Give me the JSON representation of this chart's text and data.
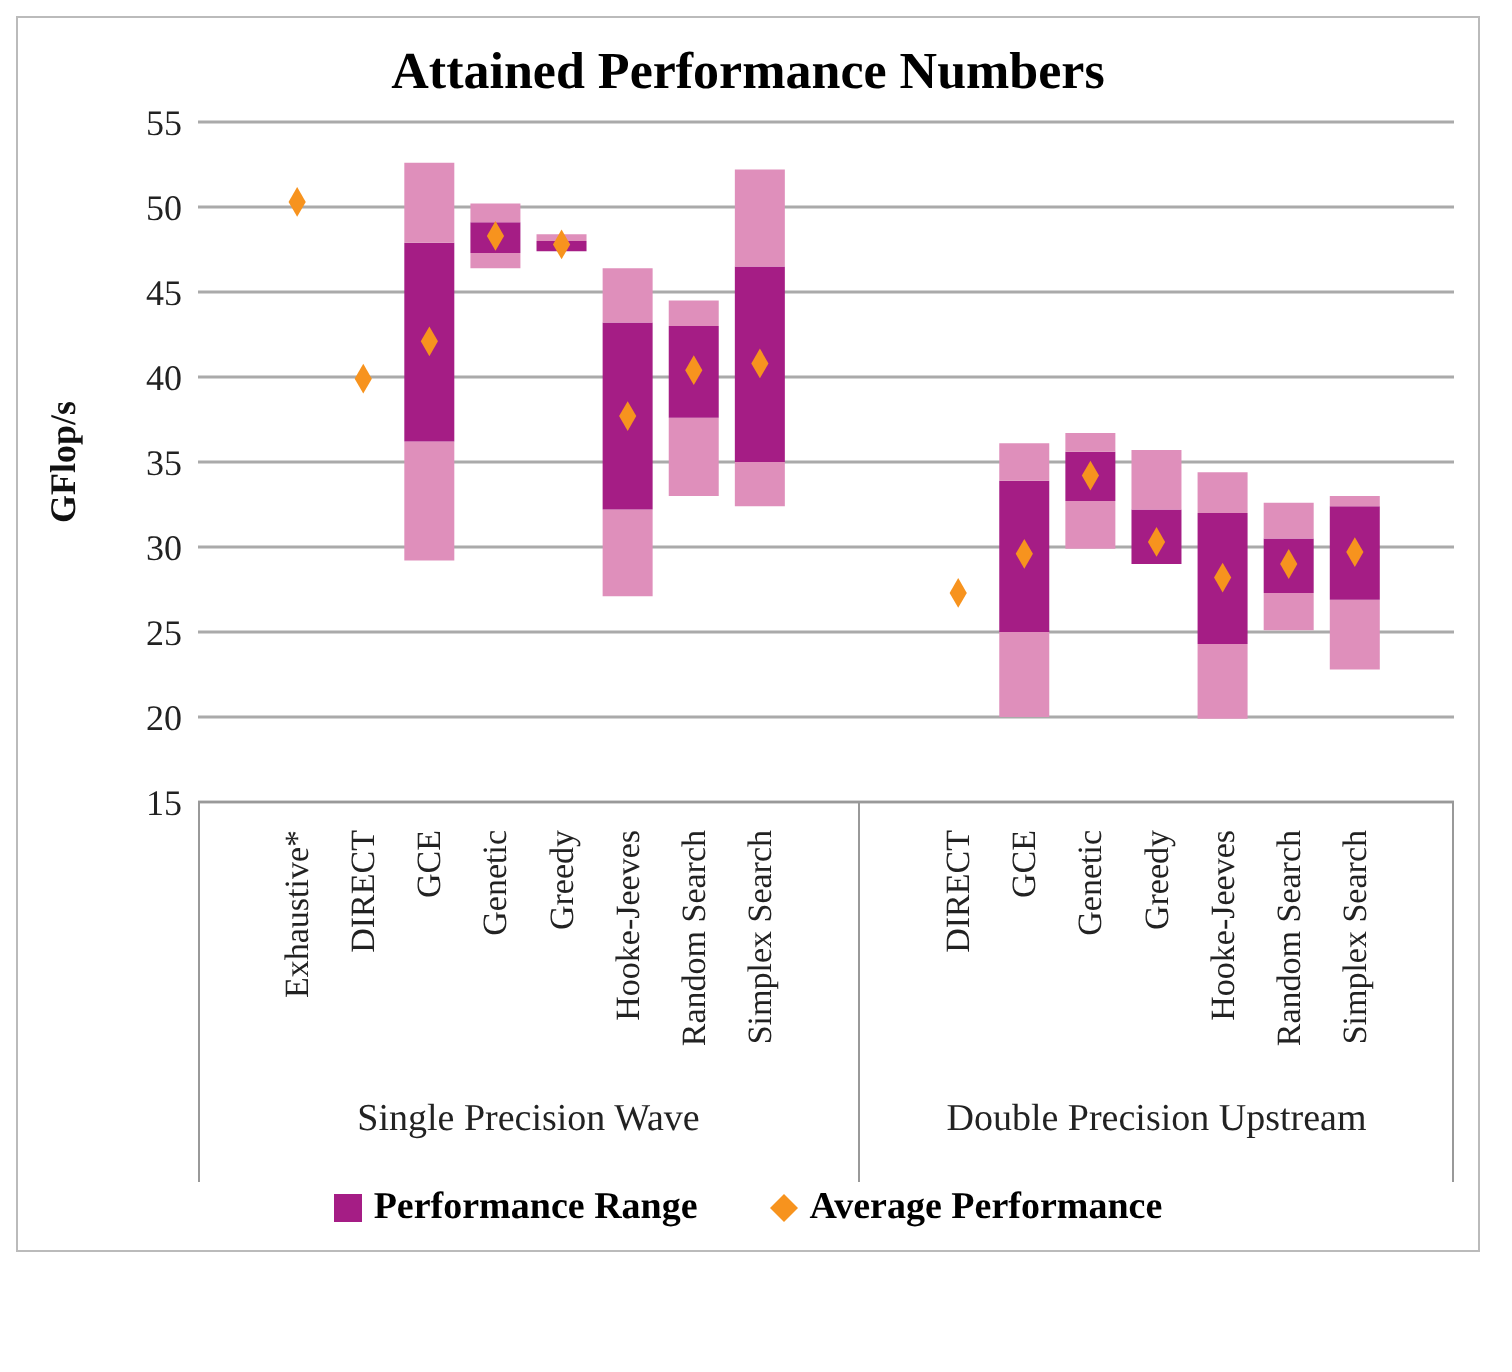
{
  "chart_data": {
    "type": "bar",
    "title": "Attained Performance Numbers",
    "ylabel": "GFlop/s",
    "categories": [
      null,
      "Exhaustive*",
      "DIRECT",
      "GCE",
      "Genetic",
      "Greedy",
      "Hooke-Jeeves",
      "Random Search",
      "Simplex Search",
      null,
      null,
      "DIRECT",
      "GCE",
      "Genetic",
      "Greedy",
      "Hooke-Jeeves",
      "Random Search",
      "Simplex Search",
      null
    ],
    "series": [
      {
        "color": "#df8fbb",
        "base": [
          null,
          null,
          null,
          29.2,
          46.4,
          null,
          27.1,
          33.0,
          32.4,
          null,
          null,
          null,
          20.0,
          29.9,
          null,
          19.9,
          25.1,
          22.8,
          null
        ],
        "values": [
          null,
          null,
          null,
          7.0,
          0.9,
          null,
          5.1,
          4.6,
          2.6,
          null,
          null,
          null,
          5.0,
          2.8,
          null,
          4.4,
          2.2,
          4.1,
          null
        ]
      },
      {
        "name": "Performance Range",
        "color": "#a51d85",
        "base": [
          null,
          null,
          null,
          36.2,
          47.3,
          47.4,
          32.2,
          37.6,
          35.0,
          null,
          null,
          null,
          25.0,
          32.7,
          29.0,
          24.3,
          27.3,
          26.9,
          null
        ],
        "values": [
          null,
          null,
          null,
          11.7,
          1.8,
          0.6,
          11.0,
          5.4,
          11.5,
          null,
          null,
          null,
          8.9,
          2.9,
          3.2,
          7.7,
          3.2,
          5.5,
          null
        ]
      },
      {
        "color": "#df8fbb",
        "base": [
          null,
          null,
          null,
          47.9,
          49.1,
          48.0,
          43.2,
          43.0,
          46.5,
          null,
          null,
          null,
          33.9,
          35.6,
          32.2,
          32.0,
          30.5,
          32.4,
          null
        ],
        "values": [
          null,
          null,
          null,
          4.7,
          1.1,
          0.4,
          3.2,
          1.5,
          5.7,
          null,
          null,
          null,
          2.2,
          1.1,
          3.5,
          2.4,
          2.1,
          0.6,
          null
        ]
      },
      {
        "type": "scatter",
        "name": "Average Performance",
        "color": "#f7931e",
        "values": [
          null,
          50.3,
          39.9,
          42.1,
          48.3,
          47.8,
          37.7,
          40.4,
          40.8,
          null,
          null,
          27.3,
          29.6,
          34.2,
          30.3,
          28.2,
          29.0,
          29.7,
          null
        ]
      }
    ],
    "marker": "diamond",
    "annotations": [
      "Single Precision Wave",
      "Double Precision Upstream"
    ],
    "ylim": [
      15,
      55
    ],
    "yticks": [
      15,
      20,
      25,
      30,
      35,
      40,
      45,
      50,
      55
    ],
    "grid": "y",
    "legend": "bottom"
  }
}
